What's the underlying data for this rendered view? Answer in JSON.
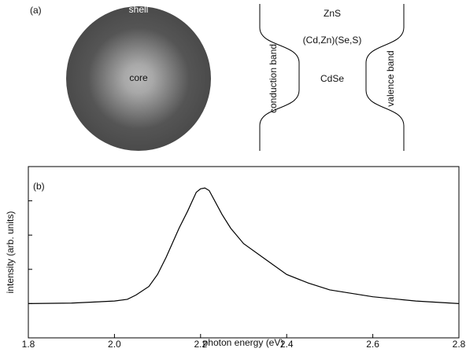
{
  "panel_a": {
    "label": "(a)",
    "shell": "shell",
    "core": "core",
    "layers": {
      "outer": "ZnS",
      "middle": "(Cd,Zn)(Se,S)",
      "inner": "CdSe"
    },
    "conduction_band": "conduction band",
    "valence_band": "valence band"
  },
  "chart_data": {
    "type": "line",
    "panel_label": "(b)",
    "x_label": "photon energy (eV)",
    "y_label": "intensity (arb. units)",
    "x": [
      1.8,
      1.9,
      2.0,
      2.03,
      2.05,
      2.08,
      2.1,
      2.12,
      2.15,
      2.17,
      2.19,
      2.2,
      2.21,
      2.22,
      2.25,
      2.27,
      2.3,
      2.35,
      2.4,
      2.45,
      2.5,
      2.55,
      2.6,
      2.7,
      2.8
    ],
    "values": [
      0.2,
      0.203,
      0.215,
      0.225,
      0.25,
      0.3,
      0.37,
      0.47,
      0.64,
      0.74,
      0.85,
      0.87,
      0.875,
      0.86,
      0.72,
      0.64,
      0.55,
      0.46,
      0.37,
      0.32,
      0.28,
      0.26,
      0.24,
      0.215,
      0.2
    ],
    "color": "#000000",
    "xlim": [
      1.8,
      2.8
    ],
    "xticks": [
      {
        "value": 1.8,
        "label": "1.8"
      },
      {
        "value": 2.0,
        "label": "2.0"
      },
      {
        "value": 2.2,
        "label": "2.2"
      },
      {
        "value": 2.4,
        "label": "2.4"
      },
      {
        "value": 2.6,
        "label": "2.6"
      },
      {
        "value": 2.8,
        "label": "2.8"
      }
    ],
    "ylim": [
      0,
      1
    ],
    "yticks": [
      0.2,
      0.4,
      0.6,
      0.8
    ]
  }
}
